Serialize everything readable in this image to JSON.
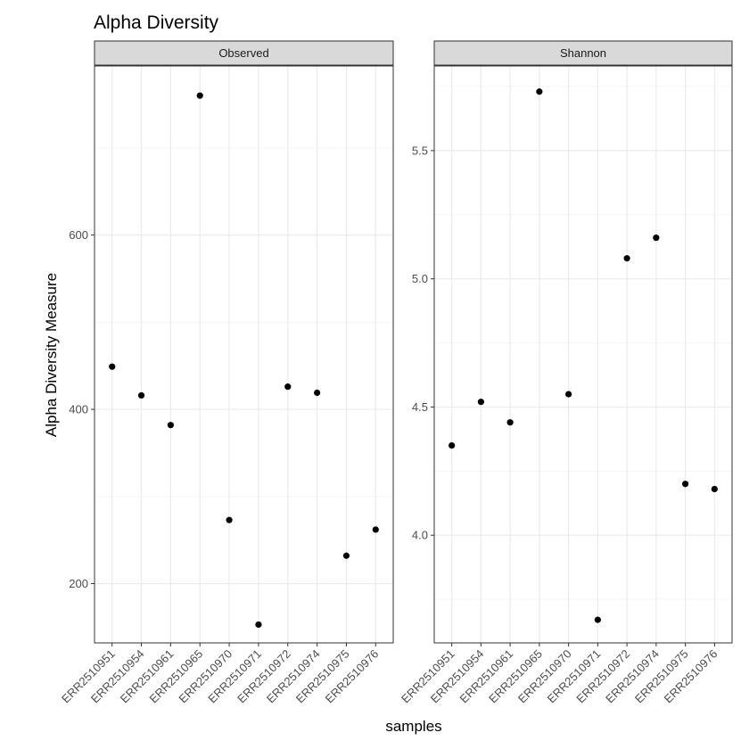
{
  "chart_data": {
    "type": "scatter",
    "title": "Alpha Diversity",
    "xlabel": "samples",
    "ylabel": "Alpha Diversity Measure",
    "categories": [
      "ERR2510951",
      "ERR2510954",
      "ERR2510961",
      "ERR2510965",
      "ERR2510970",
      "ERR2510971",
      "ERR2510972",
      "ERR2510974",
      "ERR2510975",
      "ERR2510976"
    ],
    "grid": true,
    "panels": [
      {
        "name": "Observed",
        "ylim": [
          132,
          794
        ],
        "yticks": [
          200,
          400,
          600
        ],
        "values": [
          449,
          416,
          382,
          760,
          273,
          153,
          426,
          419,
          232,
          262
        ]
      },
      {
        "name": "Shannon",
        "ylim": [
          3.58,
          5.83
        ],
        "yticks": [
          4.0,
          4.5,
          5.0,
          5.5
        ],
        "ytick_labels": [
          "4.0",
          "4.5",
          "5.0",
          "5.5"
        ],
        "values": [
          4.35,
          4.52,
          4.44,
          5.73,
          4.55,
          3.67,
          5.08,
          5.16,
          4.2,
          4.18
        ]
      }
    ],
    "colors": {
      "point": "#000000",
      "strip_fill": "#d9d9d9",
      "strip_border": "#333333",
      "grid_major": "#ebebeb",
      "grid_minor": "#f5f5f5",
      "panel_border": "#333333"
    }
  }
}
